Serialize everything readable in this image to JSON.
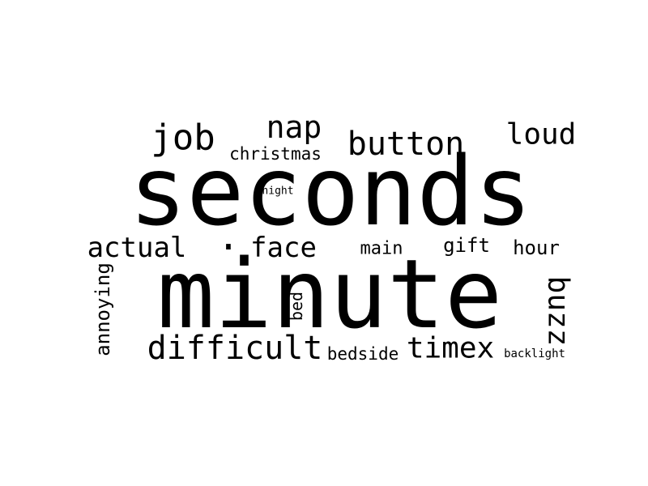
{
  "colors": {
    "background": "#ffffff",
    "text": "#000000"
  },
  "words": [
    {
      "id": "seconds",
      "text": "seconds"
    },
    {
      "id": "minute",
      "text": "minute"
    },
    {
      "id": "job",
      "text": "job"
    },
    {
      "id": "nap",
      "text": "nap"
    },
    {
      "id": "button",
      "text": "button"
    },
    {
      "id": "loud",
      "text": "loud"
    },
    {
      "id": "christmas",
      "text": "christmas"
    },
    {
      "id": "night",
      "text": "night"
    },
    {
      "id": "actual",
      "text": "actual"
    },
    {
      "id": "face",
      "text": "face"
    },
    {
      "id": "main",
      "text": "main"
    },
    {
      "id": "gift",
      "text": "gift"
    },
    {
      "id": "hour",
      "text": "hour"
    },
    {
      "id": "annoying",
      "text": "annoying"
    },
    {
      "id": "bed",
      "text": "bed"
    },
    {
      "id": "buzz",
      "text": "buzz"
    },
    {
      "id": "difficult",
      "text": "difficult"
    },
    {
      "id": "bedside",
      "text": "bedside"
    },
    {
      "id": "timex",
      "text": "timex"
    },
    {
      "id": "backlight",
      "text": "backlight"
    },
    {
      "id": "dot",
      "text": "."
    }
  ]
}
